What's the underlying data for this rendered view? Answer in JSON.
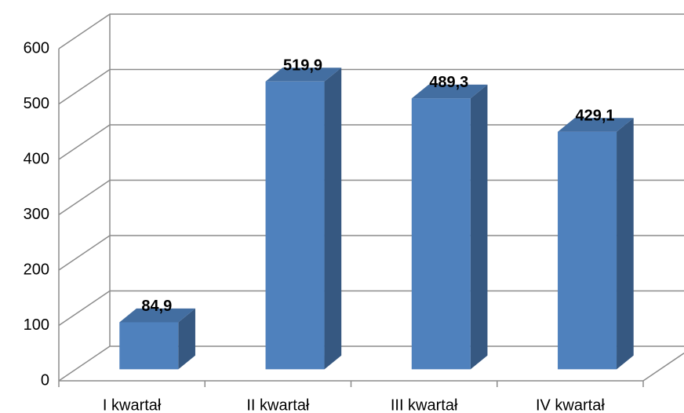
{
  "chart_data": {
    "type": "bar3d",
    "categories": [
      "I kwartał",
      "II kwartał",
      "III kwartał",
      "IV kwartał"
    ],
    "values": [
      84.9,
      519.9,
      489.3,
      429.1
    ],
    "value_labels": [
      "84,9",
      "519,9",
      "489,3",
      "429,1"
    ],
    "color": "#4f81bd",
    "ylim": [
      0,
      600
    ],
    "yticks": [
      0,
      100,
      200,
      300,
      400,
      500,
      600
    ],
    "grid": true
  }
}
